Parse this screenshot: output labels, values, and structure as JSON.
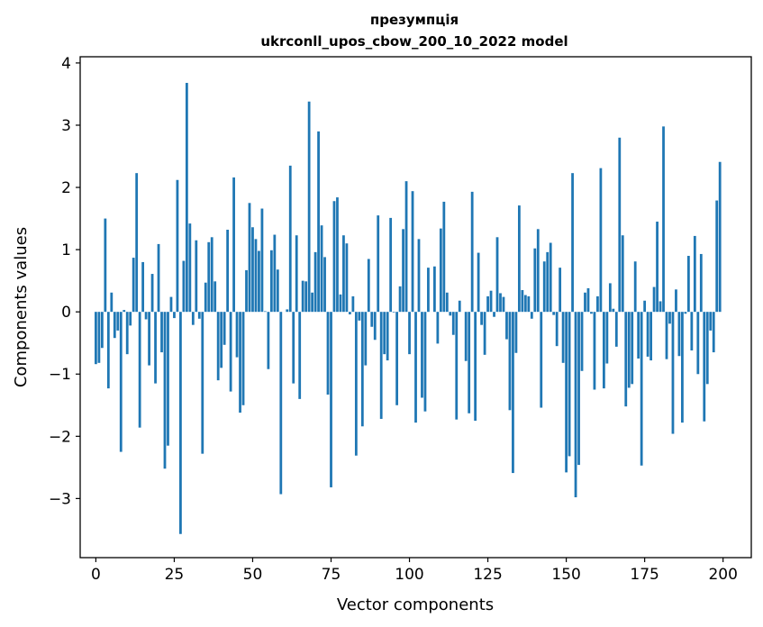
{
  "chart_data": {
    "type": "bar",
    "title_line1": "презумпція",
    "title_line2": "ukrconll_upos_cbow_200_10_2022 model",
    "xlabel": "Vector components",
    "ylabel": "Components values",
    "xlim": [
      -5,
      209
    ],
    "ylim": [
      -3.95,
      4.1
    ],
    "xticks": [
      0,
      25,
      50,
      75,
      100,
      125,
      150,
      175,
      200
    ],
    "yticks": [
      -3,
      -2,
      -1,
      0,
      1,
      2,
      3,
      4
    ],
    "xtick_labels": [
      "0",
      "25",
      "50",
      "75",
      "100",
      "125",
      "150",
      "175",
      "200"
    ],
    "ytick_labels": [
      "−3",
      "−2",
      "−1",
      "0",
      "1",
      "2",
      "3",
      "4"
    ],
    "bar_color": "#1f77b4",
    "grid": false,
    "values": [
      -0.84,
      -0.82,
      -0.58,
      1.5,
      -1.23,
      0.31,
      -0.42,
      -0.3,
      -2.25,
      0.03,
      -0.68,
      -0.22,
      0.87,
      2.23,
      -1.86,
      0.8,
      -0.12,
      -0.86,
      0.61,
      -1.15,
      1.09,
      -0.65,
      -2.52,
      -2.15,
      0.24,
      -0.1,
      2.12,
      -3.57,
      0.82,
      3.68,
      1.42,
      -0.21,
      1.15,
      -0.11,
      -2.28,
      0.47,
      1.12,
      1.2,
      0.49,
      -1.1,
      -0.9,
      -0.53,
      1.32,
      -1.28,
      2.16,
      -0.73,
      -1.62,
      -1.5,
      0.67,
      1.75,
      1.36,
      1.17,
      0.98,
      1.66,
      0.01,
      -0.92,
      0.99,
      1.24,
      0.68,
      -2.93,
      0.0,
      0.04,
      2.35,
      -1.15,
      1.23,
      -1.4,
      0.5,
      0.49,
      3.38,
      0.31,
      0.96,
      2.9,
      1.39,
      0.88,
      -1.33,
      -2.82,
      1.78,
      1.84,
      0.28,
      1.23,
      1.1,
      -0.04,
      0.25,
      -2.31,
      -0.14,
      -1.84,
      -0.86,
      0.85,
      -0.24,
      -0.45,
      1.55,
      -1.72,
      -0.68,
      -0.78,
      1.51,
      -0.01,
      -1.5,
      0.41,
      1.33,
      2.1,
      -0.68,
      1.94,
      -1.78,
      1.17,
      -1.38,
      -1.6,
      0.71,
      0.0,
      0.73,
      -0.51,
      1.34,
      1.77,
      0.31,
      -0.06,
      -0.37,
      -1.73,
      0.18,
      0.0,
      -0.79,
      -1.63,
      1.93,
      -1.75,
      0.95,
      -0.21,
      -0.69,
      0.25,
      0.34,
      -0.08,
      1.2,
      0.3,
      0.24,
      -0.44,
      -1.58,
      -2.59,
      -0.66,
      1.71,
      0.35,
      0.27,
      0.25,
      -0.11,
      1.02,
      1.33,
      -1.54,
      0.81,
      0.96,
      1.11,
      -0.05,
      -0.55,
      0.71,
      -0.82,
      -2.58,
      -2.32,
      2.23,
      -2.98,
      -2.46,
      -0.95,
      0.31,
      0.38,
      -0.03,
      -1.25,
      0.25,
      2.31,
      -1.23,
      -0.83,
      0.46,
      0.05,
      -0.56,
      2.8,
      1.23,
      -1.52,
      -1.22,
      -1.16,
      0.81,
      -0.75,
      -2.47,
      0.18,
      -0.72,
      -0.78,
      0.4,
      1.45,
      0.17,
      2.98,
      -0.76,
      -0.19,
      -1.96,
      0.36,
      -0.71,
      -1.78,
      -0.03,
      0.9,
      -0.62,
      1.22,
      -1.0,
      0.93,
      -1.76,
      -1.16,
      -0.3,
      -0.65,
      1.79,
      2.41
    ]
  }
}
